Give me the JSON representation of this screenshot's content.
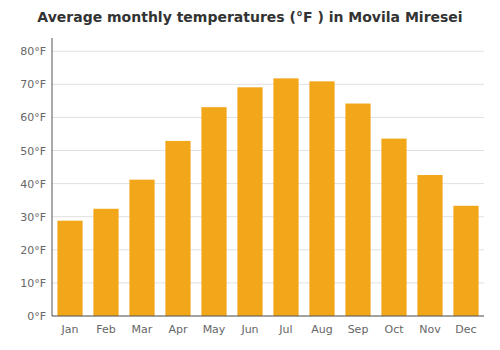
{
  "chart_data": {
    "type": "bar",
    "title": "Average monthly temperatures (°F ) in Movila Miresei",
    "categories": [
      "Jan",
      "Feb",
      "Mar",
      "Apr",
      "May",
      "Jun",
      "Jul",
      "Aug",
      "Sep",
      "Oct",
      "Nov",
      "Dec"
    ],
    "values": [
      28.8,
      32.4,
      41.2,
      52.9,
      63.1,
      69.1,
      71.8,
      70.9,
      64.2,
      53.6,
      42.6,
      33.3
    ],
    "color": "#F2A61A",
    "ylim": [
      0,
      84
    ],
    "yticks": [
      {
        "value": 0,
        "label": "0°F"
      },
      {
        "value": 10,
        "label": "10°F"
      },
      {
        "value": 20,
        "label": "20°F"
      },
      {
        "value": 30,
        "label": "30°F"
      },
      {
        "value": 40,
        "label": "40°F"
      },
      {
        "value": 50,
        "label": "50°F"
      },
      {
        "value": 60,
        "label": "60°F"
      },
      {
        "value": 70,
        "label": "70°F"
      },
      {
        "value": 80,
        "label": "80°F"
      }
    ],
    "grid": true
  }
}
